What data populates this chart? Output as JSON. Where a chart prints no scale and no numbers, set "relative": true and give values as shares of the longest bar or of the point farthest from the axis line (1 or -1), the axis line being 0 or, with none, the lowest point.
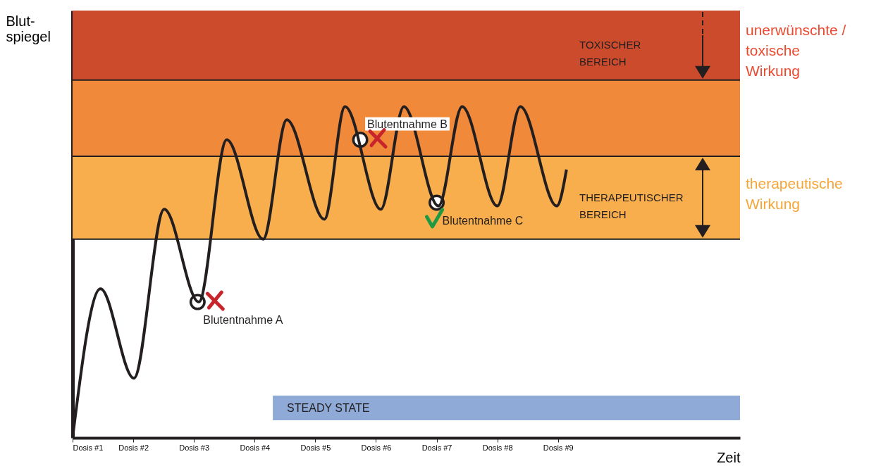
{
  "chart_data": {
    "type": "line",
    "relative": true,
    "xlabel": "Zeit",
    "ylabel": "Blut-\nspiegel",
    "x": [
      1,
      1.46,
      2.01,
      2.51,
      3.08,
      3.54,
      4.14,
      4.53,
      5.15,
      5.49,
      6.08,
      6.46,
      7.03,
      7.42,
      8.0,
      8.38,
      8.98,
      9.14
    ],
    "values": [
      0,
      0.45,
      0.18,
      0.69,
      0.41,
      0.9,
      0.6,
      0.96,
      0.66,
      1.0,
      0.69,
      1.0,
      0.7,
      1.0,
      0.7,
      1.0,
      0.7,
      0.81
    ],
    "color": "#231f20",
    "marker": "none",
    "line_style": "solid",
    "grid": false,
    "xlim": [
      1,
      12
    ],
    "xticks": [
      {
        "value": 1,
        "label": "Dosis #1"
      },
      {
        "value": 2,
        "label": "Dosis #2"
      },
      {
        "value": 3,
        "label": "Dosis #3"
      },
      {
        "value": 4,
        "label": "Dosis #4"
      },
      {
        "value": 5,
        "label": "Dosis #5"
      },
      {
        "value": 6,
        "label": "Dosis #6"
      },
      {
        "value": 7,
        "label": "Dosis #7"
      },
      {
        "value": 8,
        "label": "Dosis #8"
      },
      {
        "value": 9,
        "label": "Dosis #9"
      }
    ],
    "bands": [
      {
        "axis": "y",
        "from": 1.08,
        "to": 1.29,
        "label": "TOXISCHER BEREICH",
        "color": "#cc4b2c"
      },
      {
        "axis": "y",
        "from": 0.85,
        "to": 1.08,
        "color": "#f0893a"
      },
      {
        "axis": "y",
        "from": 0.6,
        "to": 0.85,
        "label": "THERAPEUTISCHER BEREICH",
        "color": "#f8ae4c"
      },
      {
        "axis": "x",
        "from": 4.3,
        "to": 12,
        "label": "STEADY STATE",
        "color": "#8faad6"
      }
    ],
    "ref_lines": [
      {
        "axis": "y",
        "value": 1.08
      },
      {
        "axis": "y",
        "value": 0.85
      },
      {
        "axis": "y",
        "value": 0.6
      }
    ],
    "annotations": [
      {
        "text": "Blutentnahme A",
        "x": 3.06,
        "y": 0.41
      },
      {
        "text": "Blutentnahme B",
        "x": 5.74,
        "y": 0.9
      },
      {
        "text": "Blutentnahme C",
        "x": 7.0,
        "y": 0.71
      },
      "unerwünschte / toxische Wirkung",
      "therapeutische Wirkung"
    ]
  }
}
